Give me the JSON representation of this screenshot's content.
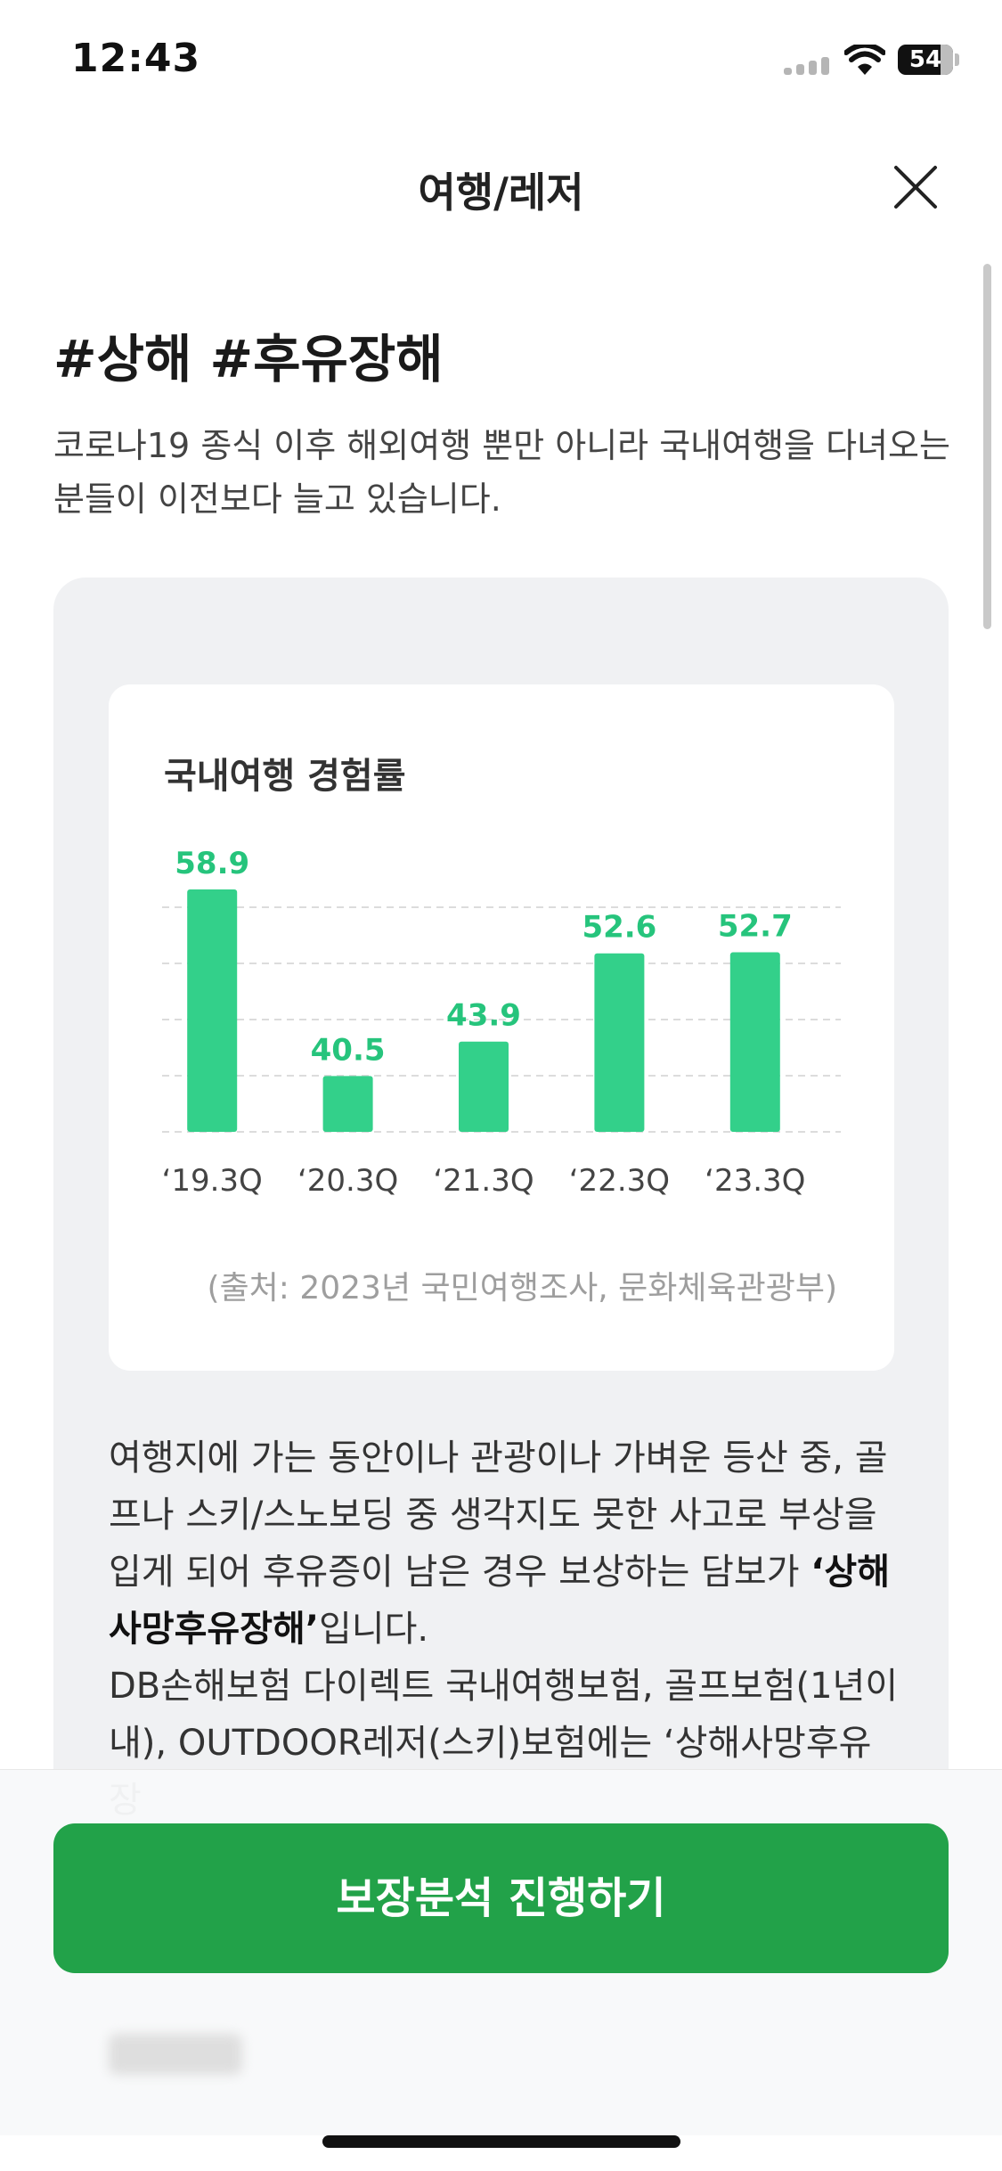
{
  "status_bar": {
    "time": "12:43",
    "battery": "54"
  },
  "header": {
    "title": "여행/레저"
  },
  "content": {
    "heading": "#상해 #후유장해",
    "intro": "코로나19 종식 이후 해외여행 뿐만 아니라 국내여행을 다녀오는 분들이 이전보다 늘고 있습니다.",
    "body_1_prefix": "여행지에 가는 동안이나 관광이나 가벼운 등산 중, 골프나 스키/스노보딩 중 생각지도 못한 사고로 부상을 입게 되어 후유증이 남은 경우 보상하는 담보가 ",
    "body_1_bold": "‘상해사망후유장해’",
    "body_1_suffix": "입니다.",
    "body_2": "DB손해보험 다이렉트 국내여행보험, 골프보험(1년이내), OUTDOOR레저(스키)보험에는 ‘상해사망후유장"
  },
  "chart_data": {
    "type": "bar",
    "title": "국내여행 경험률",
    "categories": [
      "‘19.3Q",
      "‘20.3Q",
      "‘21.3Q",
      "‘22.3Q",
      "‘23.3Q"
    ],
    "values": [
      58.9,
      40.5,
      43.9,
      52.6,
      52.7
    ],
    "value_labels": [
      "58.9",
      "40.5",
      "43.9",
      "52.6",
      "52.7"
    ],
    "source": "(출처: 2023년 국민여행조사, 문화체육관광부)",
    "ylim": [
      35,
      60
    ],
    "grid": true,
    "color": "#33d08a"
  },
  "cta": {
    "label": "보장분석 진행하기"
  },
  "colors": {
    "accent": "#22a249",
    "bar": "#33d08a",
    "card_bg": "#f0f1f3"
  }
}
